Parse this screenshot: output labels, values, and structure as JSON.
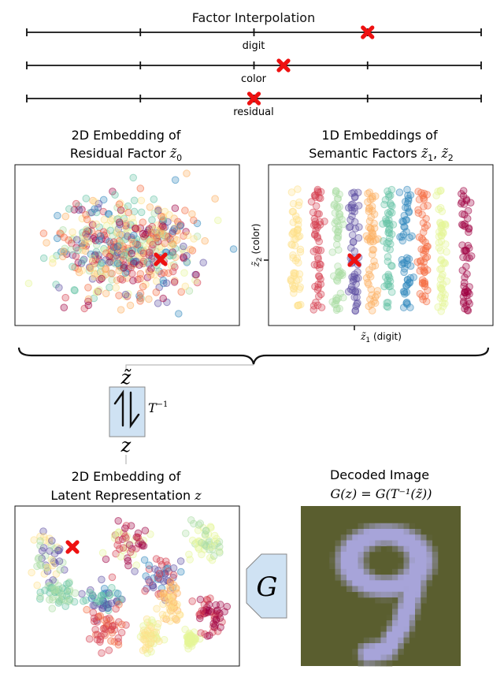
{
  "header": {
    "title": "Factor Interpolation"
  },
  "sliders": [
    {
      "label": "digit",
      "marker_position": 0.75
    },
    {
      "label": "color",
      "marker_position": 0.565
    },
    {
      "label": "residual",
      "marker_position": 0.5
    }
  ],
  "panels": {
    "residual": {
      "title_line1": "2D Embedding of",
      "title_line2_text": "Residual Factor ",
      "title_line2_math": "z̃",
      "title_line2_sub": "0"
    },
    "semantic": {
      "title_line1": "1D Embeddings of",
      "title_line2_text": "Semantic Factors ",
      "title_line2_math": "z̃",
      "title_line2_sub1": "1",
      "title_line2_comma": ", ",
      "title_line2_sub2": "2",
      "xlabel_math": "z̃",
      "xlabel_sub": "1",
      "xlabel_text": " (digit)",
      "ylabel_math": "z̃",
      "ylabel_sub": "2",
      "ylabel_text": " (color)"
    },
    "latent": {
      "title_line1": "2D Embedding of",
      "title_line2_text": "Latent Representation ",
      "title_line2_math": "z"
    },
    "decoded": {
      "title_line1": "Decoded Image",
      "formula": "G(z) = G(T⁻¹(z̃))",
      "background_color": "#5a5e2f",
      "digit_color": "#a7a4d9"
    }
  },
  "flow": {
    "z_tilde_label": "z̃",
    "z_label": "z",
    "inverse_label": "T",
    "inverse_sup": "−1",
    "generator_label": "G"
  },
  "colors": {
    "marker": "#ee1111",
    "block_fill": "#cfe2f3",
    "block_stroke": "#888888",
    "palette": [
      "#9e0142",
      "#d53e4f",
      "#f46d43",
      "#fdae61",
      "#fee08b",
      "#e6f598",
      "#abdda4",
      "#66c2a5",
      "#3288bd",
      "#5e4fa2"
    ]
  },
  "icons": {
    "marker": "x-cross-icon",
    "brace": "curly-brace-icon",
    "inverse": "bidirectional-arrow-icon"
  }
}
